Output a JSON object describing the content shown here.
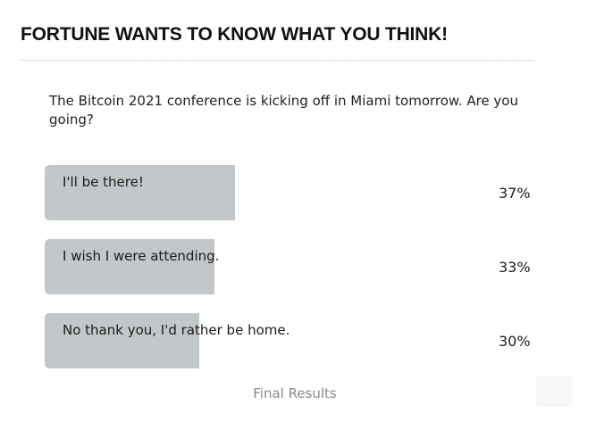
{
  "poll": {
    "header": "FORTUNE WANTS TO KNOW WHAT YOU THINK!",
    "question": "The Bitcoin 2021 conference is kicking off in Miami tomorrow. Are you going?",
    "options": [
      {
        "label": "I'll be there!",
        "percent_text": "37%",
        "percent": 37
      },
      {
        "label": "I wish I were attending.",
        "percent_text": "33%",
        "percent": 33
      },
      {
        "label": "No thank you, I'd rather be home.",
        "percent_text": "30%",
        "percent": 30
      }
    ],
    "footer": "Final Results"
  },
  "colors": {
    "bar": "#c2c8c9",
    "muted_text": "#8a8a8a"
  }
}
